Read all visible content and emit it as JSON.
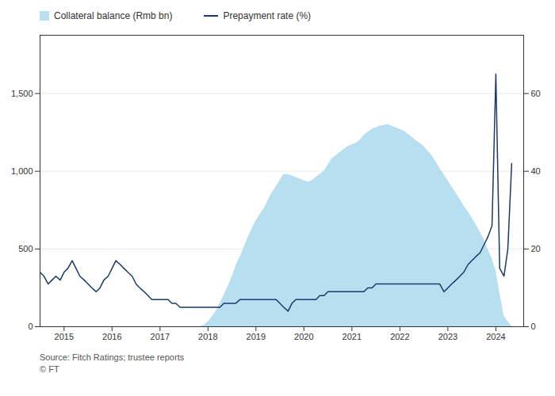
{
  "chart_data": {
    "type": "area_line",
    "x": [
      2014.5,
      2014.58,
      2014.67,
      2014.75,
      2014.83,
      2014.92,
      2015.0,
      2015.08,
      2015.17,
      2015.25,
      2015.33,
      2015.42,
      2015.5,
      2015.58,
      2015.67,
      2015.75,
      2015.83,
      2015.92,
      2016.0,
      2016.08,
      2016.17,
      2016.25,
      2016.33,
      2016.42,
      2016.5,
      2016.58,
      2016.67,
      2016.75,
      2016.83,
      2016.92,
      2017.0,
      2017.08,
      2017.17,
      2017.25,
      2017.33,
      2017.42,
      2017.5,
      2017.58,
      2017.67,
      2017.75,
      2017.83,
      2017.92,
      2018.0,
      2018.08,
      2018.17,
      2018.25,
      2018.33,
      2018.42,
      2018.5,
      2018.58,
      2018.67,
      2018.75,
      2018.83,
      2018.92,
      2019.0,
      2019.08,
      2019.17,
      2019.25,
      2019.33,
      2019.42,
      2019.5,
      2019.58,
      2019.67,
      2019.75,
      2019.83,
      2019.92,
      2020.0,
      2020.08,
      2020.17,
      2020.25,
      2020.33,
      2020.42,
      2020.5,
      2020.58,
      2020.67,
      2020.75,
      2020.83,
      2020.92,
      2021.0,
      2021.08,
      2021.17,
      2021.25,
      2021.33,
      2021.42,
      2021.5,
      2021.58,
      2021.67,
      2021.75,
      2021.83,
      2021.92,
      2022.0,
      2022.08,
      2022.17,
      2022.25,
      2022.33,
      2022.42,
      2022.5,
      2022.58,
      2022.67,
      2022.75,
      2022.83,
      2022.92,
      2023.0,
      2023.08,
      2023.17,
      2023.25,
      2023.33,
      2023.42,
      2023.5,
      2023.58,
      2023.67,
      2023.75,
      2023.83,
      2023.92,
      2024.0,
      2024.08,
      2024.17,
      2024.25,
      2024.33
    ],
    "series": [
      {
        "name": "Collateral balance (Rmb bn)",
        "type": "area",
        "color": "#b8dff0",
        "axis": "y",
        "values": [
          0,
          0,
          0,
          0,
          0,
          0,
          0,
          0,
          0,
          0,
          0,
          0,
          0,
          0,
          0,
          0,
          0,
          0,
          0,
          0,
          0,
          0,
          0,
          0,
          0,
          0,
          0,
          0,
          0,
          0,
          0,
          0,
          0,
          0,
          0,
          0,
          0,
          0,
          0,
          0,
          0,
          10,
          30,
          60,
          100,
          150,
          200,
          260,
          320,
          390,
          450,
          510,
          570,
          630,
          680,
          720,
          760,
          810,
          860,
          900,
          940,
          980,
          980,
          970,
          960,
          950,
          940,
          930,
          940,
          960,
          980,
          1000,
          1040,
          1080,
          1100,
          1120,
          1140,
          1160,
          1170,
          1180,
          1200,
          1230,
          1250,
          1270,
          1280,
          1290,
          1295,
          1300,
          1290,
          1280,
          1270,
          1260,
          1240,
          1220,
          1200,
          1180,
          1160,
          1130,
          1100,
          1060,
          1020,
          980,
          940,
          900,
          860,
          820,
          780,
          740,
          700,
          660,
          610,
          560,
          500,
          440,
          360,
          220,
          70,
          30,
          5
        ]
      },
      {
        "name": "Prepayment rate (%)",
        "type": "line",
        "color": "#1a3a6b",
        "axis": "y2",
        "values": [
          14,
          13,
          11,
          12,
          13,
          12,
          14,
          15,
          17,
          15,
          13,
          12,
          11,
          10,
          9,
          10,
          12,
          13,
          15,
          17,
          16,
          15,
          14,
          13,
          11,
          10,
          9,
          8,
          7,
          7,
          7,
          7,
          7,
          6,
          6,
          5,
          5,
          5,
          5,
          5,
          5,
          5,
          5,
          5,
          5,
          5,
          6,
          6,
          6,
          6,
          7,
          7,
          7,
          7,
          7,
          7,
          7,
          7,
          7,
          7,
          6,
          5,
          4,
          6,
          7,
          7,
          7,
          7,
          7,
          7,
          8,
          8,
          9,
          9,
          9,
          9,
          9,
          9,
          9,
          9,
          9,
          9,
          10,
          10,
          11,
          11,
          11,
          11,
          11,
          11,
          11,
          11,
          11,
          11,
          11,
          11,
          11,
          11,
          11,
          11,
          11,
          9,
          10,
          11,
          12,
          13,
          14,
          16,
          17,
          18,
          19,
          21,
          23,
          26,
          65,
          15,
          13,
          20,
          42
        ]
      }
    ],
    "xlim": [
      2014.5,
      2024.58
    ],
    "xticks": [
      2015,
      2016,
      2017,
      2018,
      2019,
      2020,
      2021,
      2022,
      2023,
      2024
    ],
    "ylim": [
      0,
      1875
    ],
    "yticks": [
      0,
      500,
      {
        "value": 1000,
        "label": "1,000"
      },
      {
        "value": 1500,
        "label": "1,500"
      }
    ],
    "y2lim": [
      0,
      75
    ],
    "y2ticks": [
      0,
      20,
      40,
      60
    ],
    "grid": true,
    "legend": "top",
    "annotations": [
      "Source: Fitch Ratings; trustee reports",
      "© FT"
    ]
  }
}
